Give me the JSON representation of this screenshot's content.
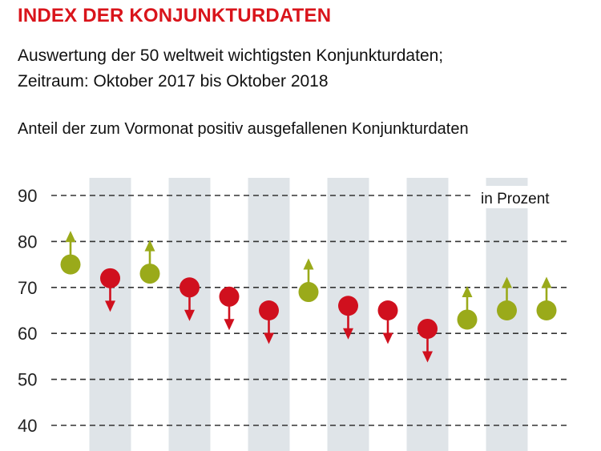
{
  "header": {
    "title": "INDEX DER KONJUNKTURDATEN",
    "subtitle_line1": "Auswertung der 50 weltweit wichtigsten Konjunkturdaten;",
    "subtitle_line2": "Zeitraum: Oktober 2017 bis Oktober 2018"
  },
  "colors": {
    "title": "#d9141b",
    "up": "#9aaa1a",
    "down": "#d0101e",
    "band": "#dfe4e8",
    "grid": "#333333"
  },
  "chart_data": {
    "type": "scatter",
    "title": "INDEX DER KONJUNKTURDATEN",
    "ylabel": "Anteil der zum Vormonat positiv ausgefallenen Konjunkturdaten",
    "unit_label": "in Prozent",
    "ylim": [
      40,
      90
    ],
    "yticks": [
      "90",
      "80",
      "70",
      "60",
      "50",
      "40"
    ],
    "grid": "horizontal dashed",
    "alternating_bands": true,
    "series": [
      {
        "values": [
          75,
          72,
          73,
          70,
          68,
          65,
          69,
          66,
          65,
          61,
          63,
          65,
          65
        ],
        "direction": [
          "up",
          "down",
          "up",
          "down",
          "down",
          "down",
          "up",
          "down",
          "down",
          "down",
          "up",
          "up",
          "up"
        ]
      }
    ]
  }
}
